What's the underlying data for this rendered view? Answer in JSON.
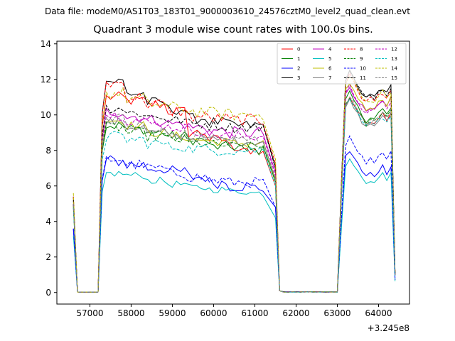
{
  "header": {
    "data_file": "Data file: modeM0/AS1T03_183T01_9000003610_24576cztM0_level2_quad_clean.evt"
  },
  "chart_data": {
    "type": "line",
    "title": "Quadrant 3 module wise count rates with 100.0s bins.",
    "xlabel": "",
    "ylabel": "",
    "x_offset_label": "+3.245e8",
    "x_offset": 324500000,
    "xlim": [
      56200,
      64750
    ],
    "ylim": [
      -0.65,
      14.15
    ],
    "x_ticks": [
      57000,
      58000,
      59000,
      60000,
      61000,
      62000,
      63000,
      64000
    ],
    "x_tick_labels": [
      "57000",
      "58000",
      "59000",
      "60000",
      "61000",
      "62000",
      "63000",
      "64000"
    ],
    "y_ticks": [
      0,
      2,
      4,
      6,
      8,
      10,
      12,
      14
    ],
    "y_tick_labels": [
      "0",
      "2",
      "4",
      "6",
      "8",
      "10",
      "12",
      "14"
    ],
    "legend_position": "top-right",
    "series": [
      {
        "name": "0",
        "color": "#ff0000",
        "style": "solid",
        "base": 5.0,
        "level": 8.0,
        "levels": [
          11.0,
          10.8,
          10.6,
          10.2,
          9.0,
          8.6,
          8.2,
          7.8
        ],
        "amp": 0.3,
        "tail": 10.0
      },
      {
        "name": "1",
        "color": "#008000",
        "style": "solid",
        "base": 4.8,
        "level": 8.3,
        "levels": [
          9.4,
          9.2,
          9.0,
          8.8,
          8.6,
          8.2,
          8.2,
          8.0
        ],
        "amp": 0.3,
        "tail": 10.2
      },
      {
        "name": "2",
        "color": "#0000ff",
        "style": "solid",
        "base": 3.6,
        "level": 6.4,
        "levels": [
          7.4,
          7.2,
          7.0,
          6.8,
          6.5,
          6.2,
          6.0,
          5.9
        ],
        "amp": 0.35,
        "tail": 7.0
      },
      {
        "name": "3",
        "color": "#000000",
        "style": "solid",
        "base": 5.4,
        "level": 9.4,
        "levels": [
          11.9,
          11.2,
          10.7,
          10.3,
          9.8,
          9.6,
          9.4,
          9.4
        ],
        "amp": 0.3,
        "tail": 11.4
      },
      {
        "name": "4",
        "color": "#bf00bf",
        "style": "solid",
        "base": 5.0,
        "level": 9.0,
        "levels": [
          10.2,
          9.9,
          9.7,
          9.5,
          9.3,
          9.1,
          9.0,
          9.0
        ],
        "amp": 0.35,
        "tail": 10.6
      },
      {
        "name": "5",
        "color": "#00bfbf",
        "style": "solid",
        "base": 3.2,
        "level": 5.6,
        "levels": [
          6.7,
          6.6,
          6.3,
          6.1,
          5.9,
          5.8,
          5.7,
          5.6
        ],
        "amp": 0.2,
        "tail": 6.6
      },
      {
        "name": "6",
        "color": "#bfbf00",
        "style": "solid",
        "base": 5.0,
        "level": 8.4,
        "levels": [
          9.7,
          9.4,
          9.0,
          8.8,
          8.6,
          8.5,
          8.4,
          8.4
        ],
        "amp": 0.25,
        "tail": 10.8
      },
      {
        "name": "7",
        "color": "#808080",
        "style": "solid",
        "base": 5.0,
        "level": 8.5,
        "levels": [
          9.6,
          9.3,
          9.0,
          8.8,
          8.7,
          8.6,
          8.5,
          8.5
        ],
        "amp": 0.25,
        "tail": 9.8
      },
      {
        "name": "8",
        "color": "#ff0000",
        "style": "dashed",
        "base": 5.4,
        "level": 9.7,
        "levels": [
          11.8,
          11.0,
          10.6,
          10.2,
          9.9,
          9.8,
          9.7,
          9.7
        ],
        "amp": 0.35,
        "tail": 11.2
      },
      {
        "name": "9",
        "color": "#008000",
        "style": "dashed",
        "base": 5.0,
        "level": 8.3,
        "levels": [
          9.3,
          9.0,
          8.8,
          8.6,
          8.4,
          8.3,
          8.2,
          8.2
        ],
        "amp": 0.3,
        "tail": 10.0
      },
      {
        "name": "10",
        "color": "#0000ff",
        "style": "dashed",
        "base": 3.6,
        "level": 6.4,
        "levels": [
          7.5,
          7.2,
          7.0,
          6.7,
          6.5,
          6.3,
          6.2,
          6.2
        ],
        "amp": 0.3,
        "tail": 7.8
      },
      {
        "name": "11",
        "color": "#000000",
        "style": "dashed",
        "base": 5.2,
        "level": 9.3,
        "levels": [
          10.4,
          10.1,
          9.9,
          9.7,
          9.5,
          9.4,
          9.3,
          9.3
        ],
        "amp": 0.3,
        "tail": 11.4
      },
      {
        "name": "12",
        "color": "#bf00bf",
        "style": "dashed",
        "base": 5.0,
        "level": 8.8,
        "levels": [
          10.0,
          9.7,
          9.5,
          9.3,
          9.1,
          8.9,
          8.8,
          8.8
        ],
        "amp": 0.3,
        "tail": 10.6
      },
      {
        "name": "13",
        "color": "#00bfbf",
        "style": "dashed",
        "base": 4.8,
        "level": 8.0,
        "levels": [
          8.8,
          8.6,
          8.4,
          8.2,
          8.1,
          8.0,
          8.0,
          8.0
        ],
        "amp": 0.3,
        "tail": 9.8
      },
      {
        "name": "14",
        "color": "#bfbf00",
        "style": "dashed",
        "base": 5.6,
        "level": 10.0,
        "levels": [
          11.2,
          10.9,
          10.6,
          10.4,
          10.2,
          10.1,
          10.0,
          10.0
        ],
        "amp": 0.35,
        "tail": 11.2
      },
      {
        "name": "15",
        "color": "#808080",
        "style": "dashed",
        "base": 5.0,
        "level": 8.6,
        "levels": [
          9.8,
          9.4,
          9.1,
          8.9,
          8.8,
          8.7,
          8.6,
          8.6
        ],
        "amp": 0.3,
        "tail": 10.0
      }
    ]
  }
}
